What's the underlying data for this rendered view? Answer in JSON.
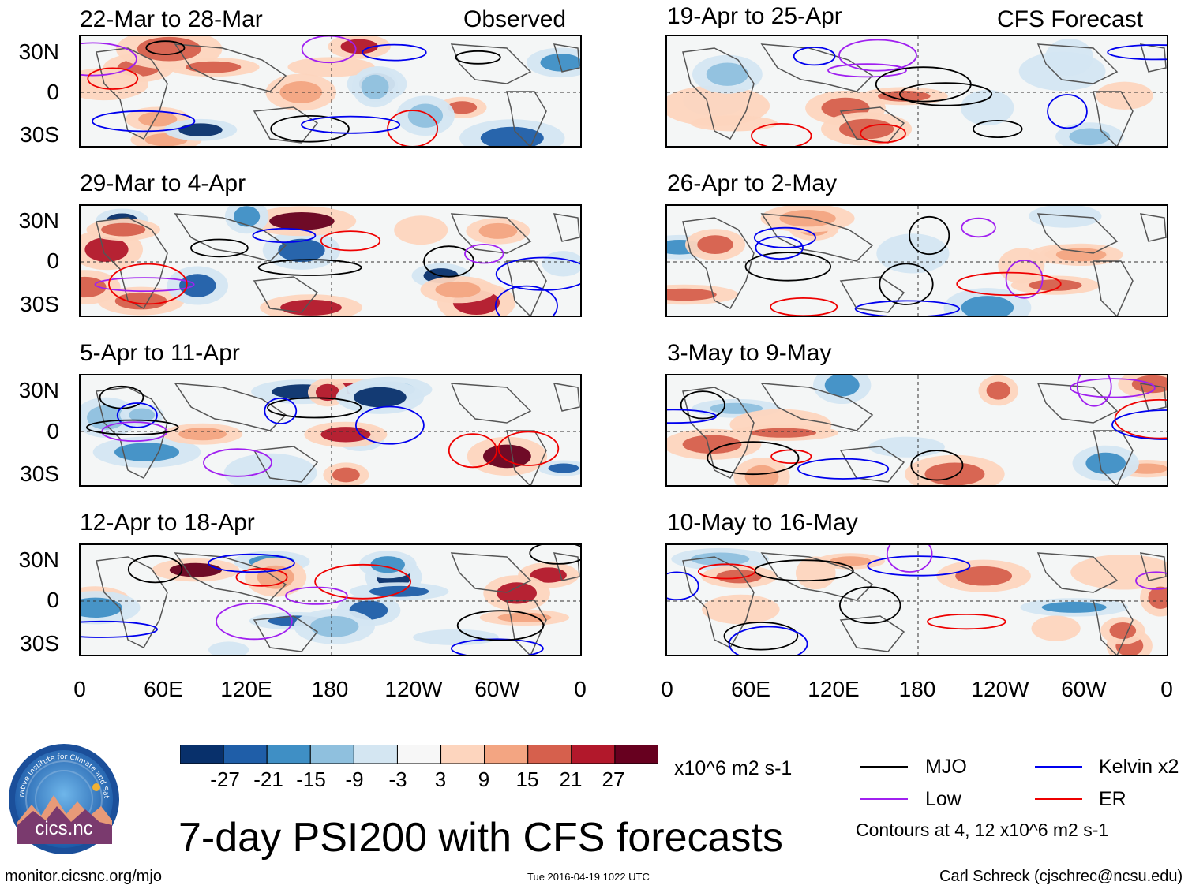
{
  "panels": {
    "left": [
      {
        "date": "22-Mar to 28-Mar",
        "tag": "Observed"
      },
      {
        "date": "29-Mar to 4-Apr",
        "tag": ""
      },
      {
        "date": "5-Apr to 11-Apr",
        "tag": ""
      },
      {
        "date": "12-Apr to 18-Apr",
        "tag": ""
      }
    ],
    "right": [
      {
        "date": "19-Apr to 25-Apr",
        "tag": "CFS Forecast"
      },
      {
        "date": "26-Apr to 2-May",
        "tag": ""
      },
      {
        "date": "3-May to 9-May",
        "tag": ""
      },
      {
        "date": "10-May to 16-May",
        "tag": ""
      }
    ]
  },
  "axes": {
    "lat_labels": [
      "30N",
      "0",
      "30S"
    ],
    "lon_labels": [
      "0",
      "60E",
      "120E",
      "180",
      "120W",
      "60W",
      "0"
    ]
  },
  "colorbar": {
    "colors": [
      "#08306b",
      "#1f5ea8",
      "#3f8fc5",
      "#8fc0de",
      "#d4e6f2",
      "#f7f7f7",
      "#fdd5be",
      "#f3a582",
      "#d6604d",
      "#b2182b",
      "#67001f"
    ],
    "labels": [
      "-27",
      "-21",
      "-15",
      "-9",
      "-3",
      "3",
      "9",
      "15",
      "21",
      "27"
    ],
    "units": "x10^6 m2 s-1"
  },
  "legend": {
    "items": [
      {
        "label": "MJO",
        "color": "#000000"
      },
      {
        "label": "Kelvin x2",
        "color": "#0000ee"
      },
      {
        "label": "Low",
        "color": "#a020f0"
      },
      {
        "label": "ER",
        "color": "#ee0000"
      }
    ],
    "note": "Contours at 4, 12 x10^6 m2 s-1"
  },
  "title": "7-day PSI200 with CFS forecasts",
  "logo_text": "cics.nc",
  "logo_ring_text": "Cooperative Institute for Climate and Satellites",
  "footer": {
    "url": "monitor.cicsnc.org/mjo",
    "timestamp": "Tue 2016-04-19 1022 UTC",
    "author": "Carl Schreck (cjschrec@ncsu.edu)"
  }
}
